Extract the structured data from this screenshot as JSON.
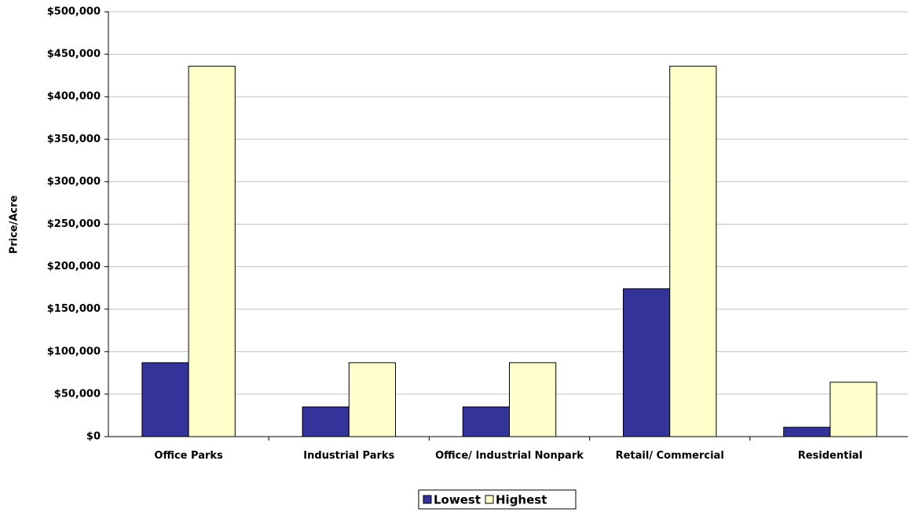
{
  "chart_data": {
    "type": "bar",
    "y_label": "Price/Acre",
    "categories": [
      "Office Parks",
      "Industrial  Parks",
      "Office/ Industrial Nonpark",
      "Retail/ Commercial",
      "Residential"
    ],
    "series": [
      {
        "name": "Lowest",
        "color": "#333399",
        "values": [
          87000,
          35000,
          35000,
          174000,
          11000
        ]
      },
      {
        "name": "Highest",
        "color": "#ffffcc",
        "values": [
          436000,
          87000,
          87000,
          436000,
          64000
        ]
      }
    ],
    "ylim": [
      0,
      500000
    ],
    "yticks": [
      {
        "value": 0,
        "label": "$0"
      },
      {
        "value": 50000,
        "label": "$50,000"
      },
      {
        "value": 100000,
        "label": "$100,000"
      },
      {
        "value": 150000,
        "label": "$150,000"
      },
      {
        "value": 200000,
        "label": "$200,000"
      },
      {
        "value": 250000,
        "label": "$250,000"
      },
      {
        "value": 300000,
        "label": "$300,000"
      },
      {
        "value": 350000,
        "label": "$350,000"
      },
      {
        "value": 400000,
        "label": "$400,000"
      },
      {
        "value": 450000,
        "label": "$450,000"
      },
      {
        "value": 500000,
        "label": "$500,000"
      }
    ],
    "grid": true,
    "legend": "bottom"
  }
}
